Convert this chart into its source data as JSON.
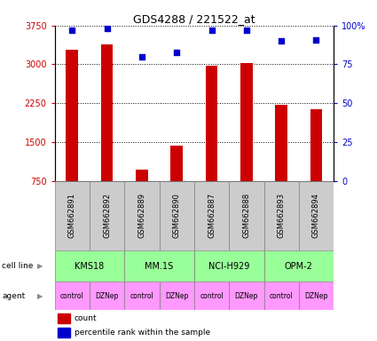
{
  "title": "GDS4288 / 221522_at",
  "samples": [
    "GSM662891",
    "GSM662892",
    "GSM662889",
    "GSM662890",
    "GSM662887",
    "GSM662888",
    "GSM662893",
    "GSM662894"
  ],
  "bar_values": [
    3280,
    3390,
    960,
    1430,
    2970,
    3030,
    2220,
    2130
  ],
  "dot_values": [
    97,
    98,
    80,
    83,
    97,
    97,
    90,
    91
  ],
  "cell_lines": [
    {
      "label": "KMS18",
      "span": [
        0,
        2
      ]
    },
    {
      "label": "MM.1S",
      "span": [
        2,
        4
      ]
    },
    {
      "label": "NCI-H929",
      "span": [
        4,
        6
      ]
    },
    {
      "label": "OPM-2",
      "span": [
        6,
        8
      ]
    }
  ],
  "agents": [
    "control",
    "DZNep",
    "control",
    "DZNep",
    "control",
    "DZNep",
    "control",
    "DZNep"
  ],
  "bar_color": "#cc0000",
  "dot_color": "#0000cc",
  "ylim_left": [
    750,
    3750
  ],
  "ylim_right": [
    0,
    100
  ],
  "yticks_left": [
    750,
    1500,
    2250,
    3000,
    3750
  ],
  "yticks_right": [
    0,
    25,
    50,
    75,
    100
  ],
  "ytick_labels_left": [
    "750",
    "1500",
    "2250",
    "3000",
    "3750"
  ],
  "ytick_labels_right": [
    "0",
    "25",
    "50",
    "75",
    "100%"
  ],
  "ylabel_left_color": "#cc0000",
  "ylabel_right_color": "#0000cc",
  "cell_line_color": "#99ff99",
  "agent_color": "#ff99ff",
  "sample_box_color": "#cccccc",
  "legend_count_color": "#cc0000",
  "legend_dot_color": "#0000cc",
  "grid_color": "black"
}
